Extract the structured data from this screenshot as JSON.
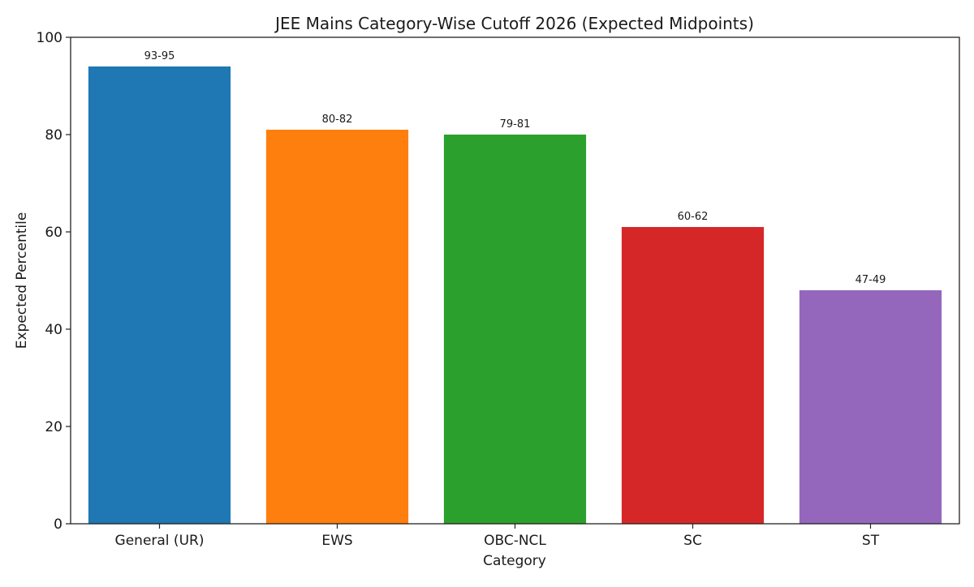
{
  "chart_data": {
    "type": "bar",
    "title": "JEE Mains Category-Wise Cutoff 2026 (Expected Midpoints)",
    "xlabel": "Category",
    "ylabel": "Expected Percentile",
    "categories": [
      "General (UR)",
      "EWS",
      "OBC-NCL",
      "SC",
      "ST"
    ],
    "values": [
      94,
      81,
      80,
      61,
      48
    ],
    "bar_labels": [
      "93-95",
      "80-82",
      "79-81",
      "60-62",
      "47-49"
    ],
    "colors": [
      "#1f77b4",
      "#ff7f0e",
      "#2ca02c",
      "#d62728",
      "#9467bd"
    ],
    "ylim": [
      0,
      100
    ],
    "yticks": [
      0,
      20,
      40,
      60,
      80,
      100
    ],
    "grid": false,
    "legend": null
  }
}
